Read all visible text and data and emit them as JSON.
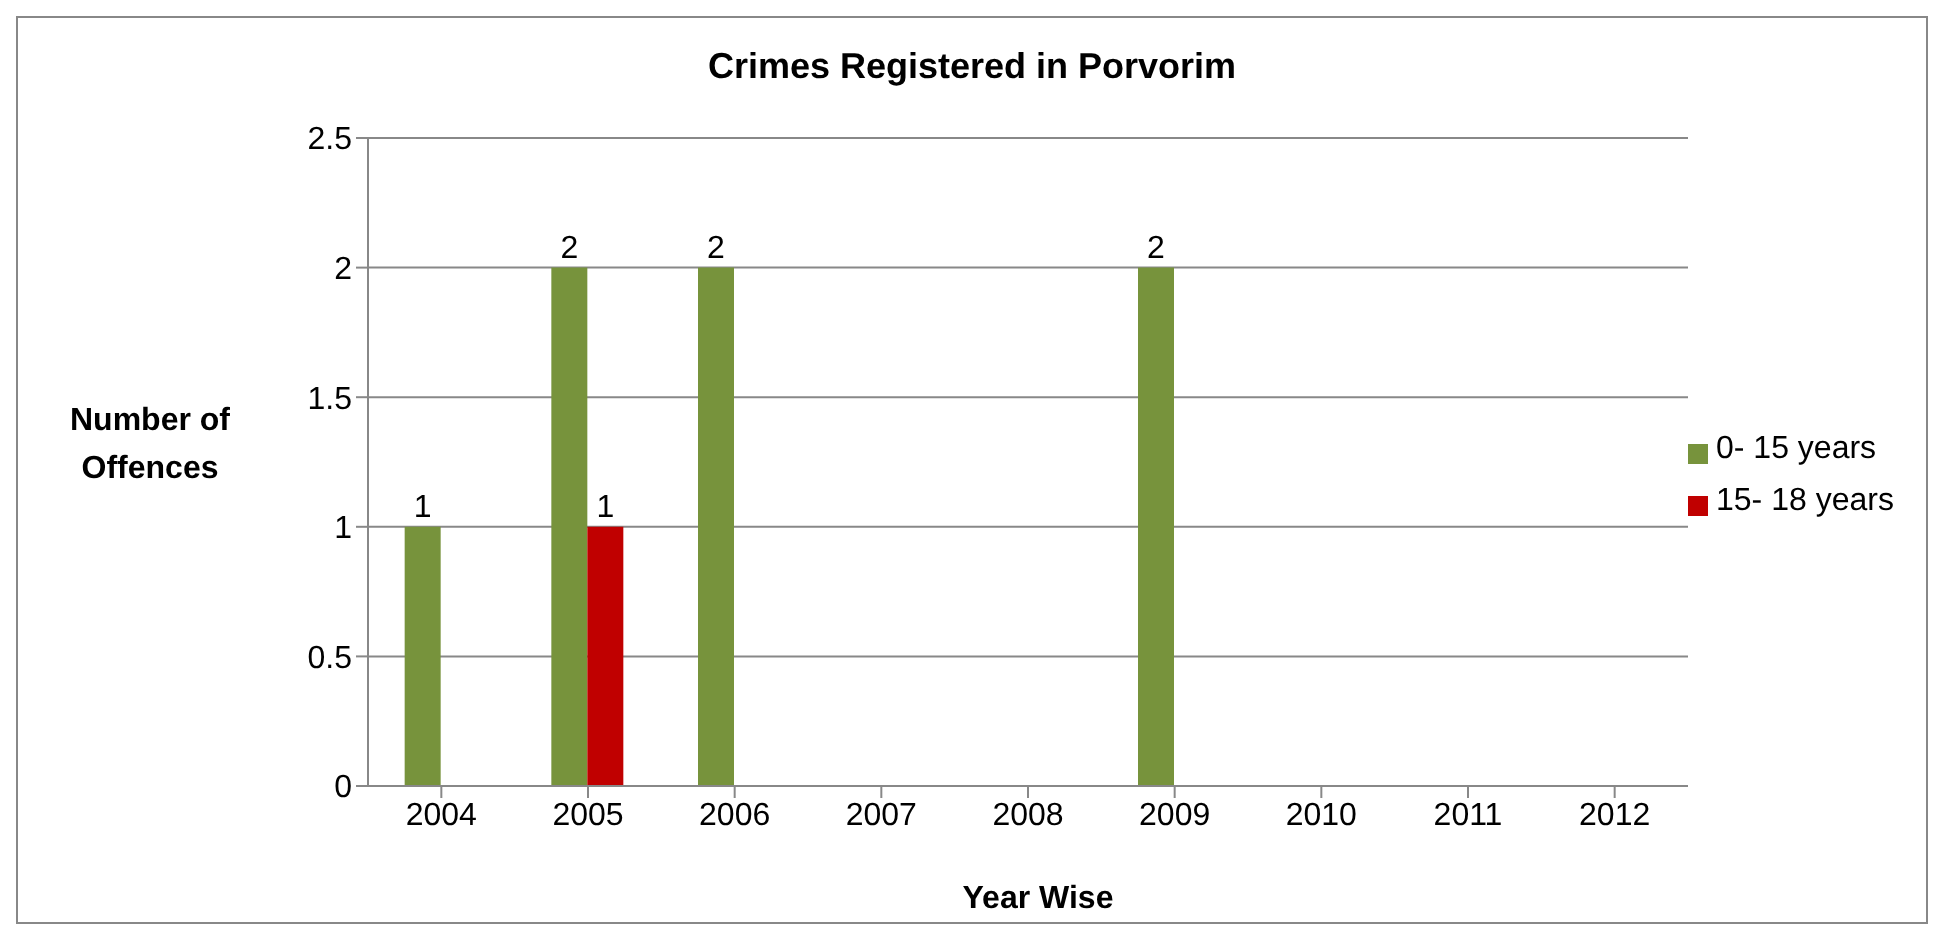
{
  "chart_data": {
    "type": "bar",
    "title": "Crimes Registered in Porvorim",
    "xlabel": "Year Wise",
    "ylabel": "Number of Offences",
    "categories": [
      "2004",
      "2005",
      "2006",
      "2007",
      "2008",
      "2009",
      "2010",
      "2011",
      "2012"
    ],
    "series": [
      {
        "name": "0- 15 years",
        "color": "#77933c",
        "values": [
          1,
          2,
          2,
          null,
          null,
          2,
          null,
          null,
          null
        ]
      },
      {
        "name": "15- 18 years",
        "color": "#c00000",
        "values": [
          null,
          1,
          null,
          null,
          null,
          null,
          null,
          null,
          null
        ]
      }
    ],
    "ylim": [
      0,
      2.5
    ],
    "yticks": [
      0,
      0.5,
      1,
      1.5,
      2,
      2.5
    ],
    "grid": "y",
    "legend": "right",
    "data_labels": true
  }
}
